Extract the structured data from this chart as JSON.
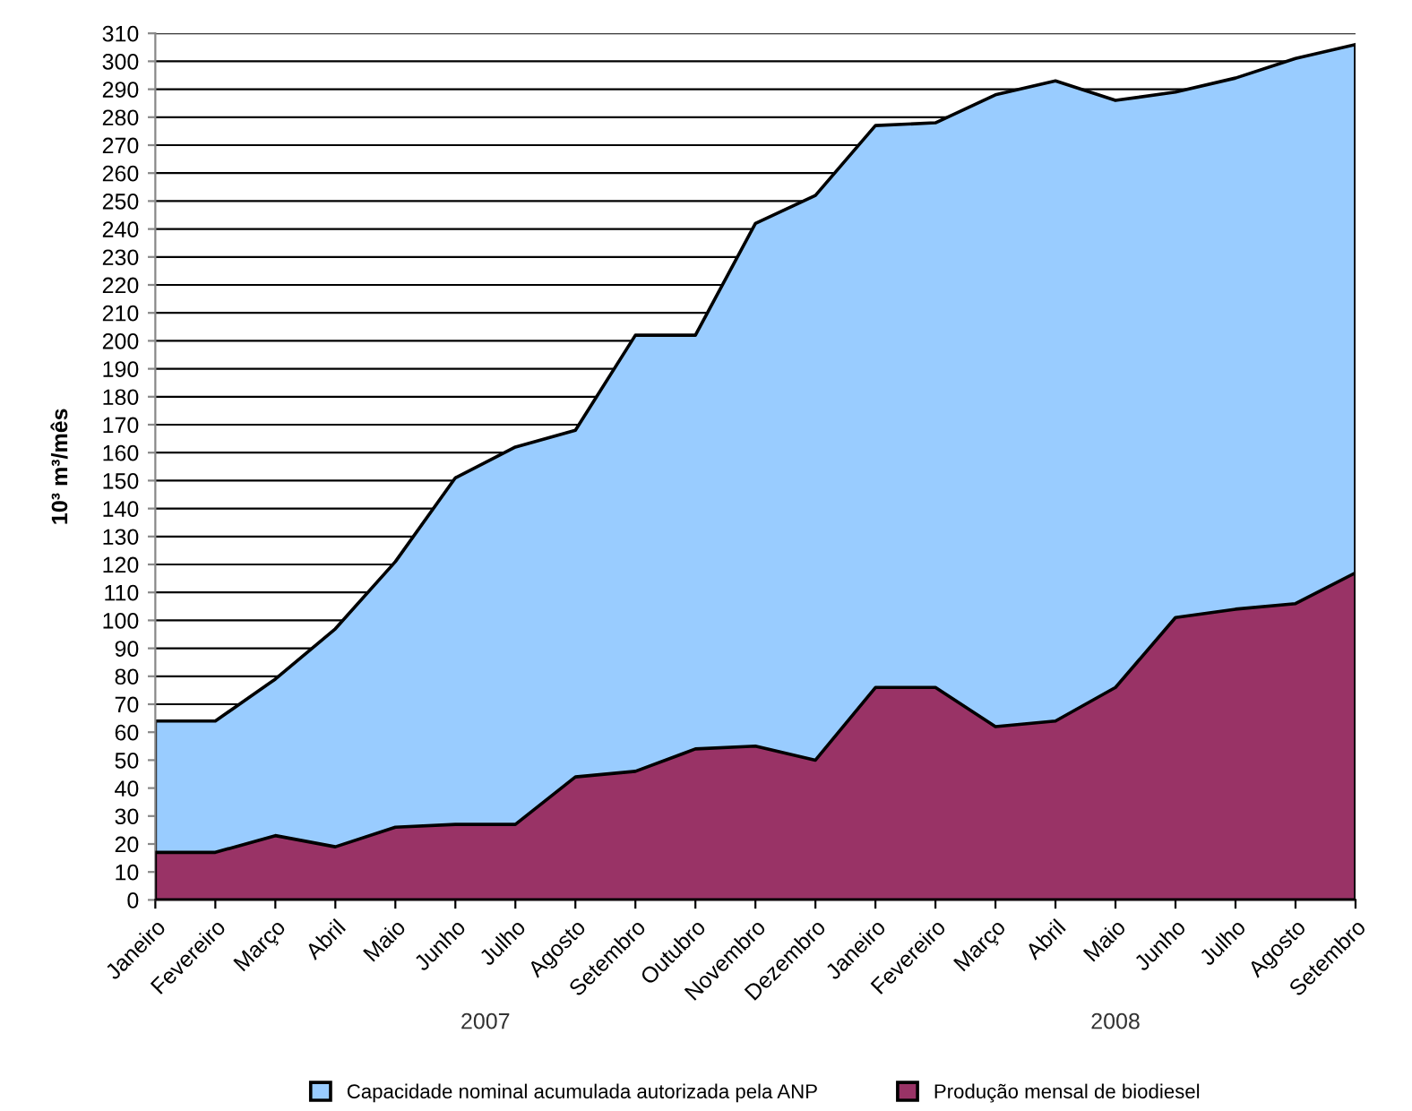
{
  "chart_data": {
    "type": "area",
    "ylabel": "10³ m³/mês",
    "categories": [
      "Janeiro",
      "Fevereiro",
      "Março",
      "Abril",
      "Maio",
      "Junho",
      "Julho",
      "Agosto",
      "Setembro",
      "Outubro",
      "Novembro",
      "Dezembro",
      "Janeiro",
      "Fevereiro",
      "Março",
      "Abril",
      "Maio",
      "Junho",
      "Julho",
      "Agosto",
      "Setembro"
    ],
    "series": [
      {
        "name": "Capacidade nominal acumulada autorizada pela ANP",
        "color": "#99ccff",
        "values": [
          64,
          64,
          79,
          97,
          121,
          151,
          162,
          168,
          202,
          202,
          242,
          252,
          277,
          278,
          288,
          293,
          286,
          289,
          294,
          301,
          306
        ]
      },
      {
        "name": "Produção mensal de biodiesel",
        "color": "#993366",
        "values": [
          17,
          17,
          23,
          19,
          26,
          27,
          27,
          44,
          46,
          54,
          55,
          50,
          76,
          76,
          62,
          64,
          76,
          101,
          104,
          106,
          117
        ]
      }
    ],
    "annotations": [
      "2007",
      "2008"
    ],
    "ylim": [
      0,
      310
    ],
    "yticks": [
      0,
      10,
      20,
      30,
      40,
      50,
      60,
      70,
      80,
      90,
      100,
      110,
      120,
      130,
      140,
      150,
      160,
      170,
      180,
      190,
      200,
      210,
      220,
      230,
      240,
      250,
      260,
      270,
      280,
      290,
      300,
      310
    ],
    "grid": "y",
    "legend": "bottom"
  }
}
